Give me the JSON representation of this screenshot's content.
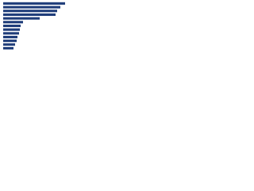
{
  "chart_data": {
    "type": "bar",
    "orientation": "horizontal",
    "categories": [
      null,
      null,
      null,
      null,
      null,
      null,
      null,
      null,
      null,
      null,
      null,
      null,
      null
    ],
    "values": [
      78,
      72,
      68,
      66,
      46,
      25,
      22,
      21,
      20,
      18,
      17,
      15,
      13
    ],
    "color": "#1f3d7a",
    "xlim": [
      0,
      100
    ]
  }
}
